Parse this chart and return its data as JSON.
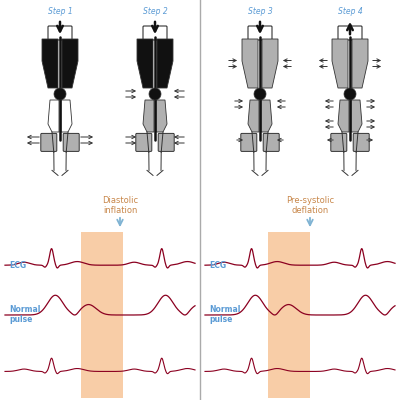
{
  "bg_color": "#ffffff",
  "step_labels": [
    "Step 1",
    "Step 2",
    "Step 3",
    "Step 4"
  ],
  "step_label_color": "#5b9bd5",
  "diastolic_label": "Diastolic\ninflation",
  "presystolic_label": "Pre-systolic\ndeflation",
  "annot_color": "#c8874a",
  "annot_arrow_color": "#7fb3d3",
  "highlight_color": "#f4a460",
  "highlight_alpha": 0.55,
  "ecg_color": "#8b0020",
  "ecg_label_color": "#5b9bd5",
  "body_outline_color": "#333333",
  "cuff_color": "#b0b0b0",
  "black_fill": "#111111",
  "divider_color": "#aaaaaa"
}
